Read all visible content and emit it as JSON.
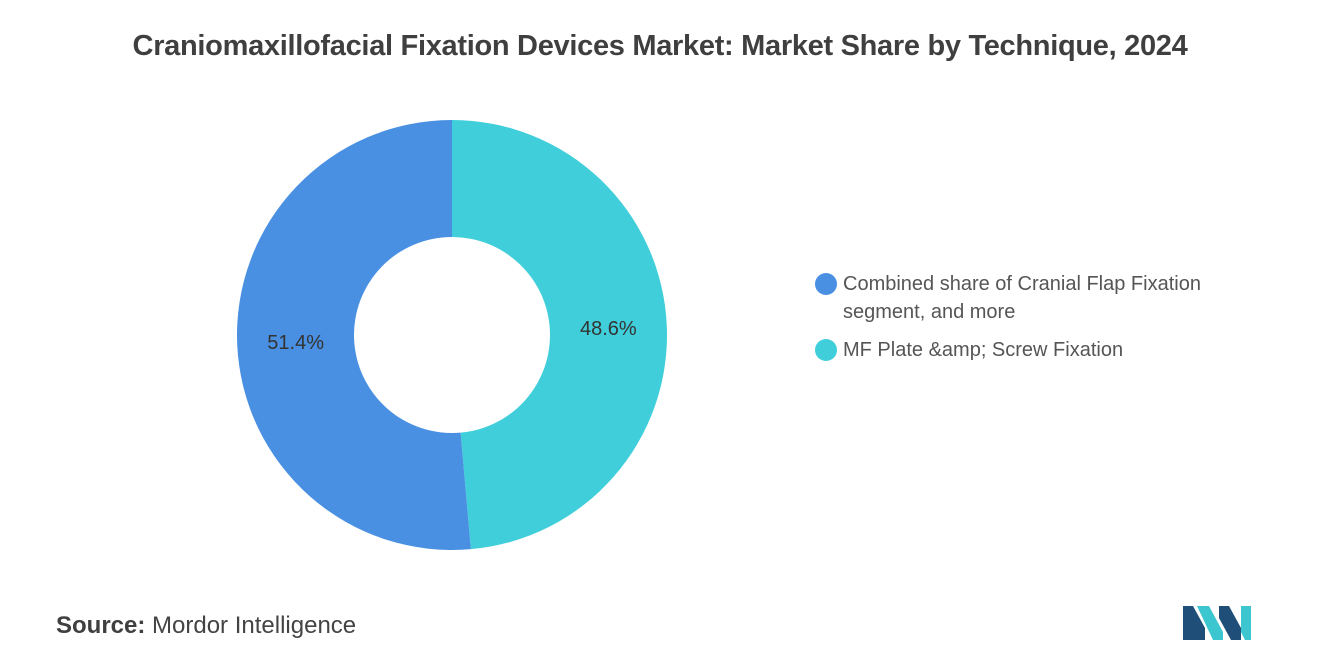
{
  "chart_data": {
    "type": "pie",
    "title": "Craniomaxillofacial Fixation Devices Market: Market Share by Technique, 2024",
    "donut": true,
    "slices": [
      {
        "label": "MF Plate &amp; Screw Fixation",
        "value": 48.6,
        "display": "48.6%",
        "color": "#40CFDA"
      },
      {
        "label": "Combined share of Cranial Flap Fixation segment, and more",
        "value": 51.4,
        "display": "51.4%",
        "color": "#4A90E2"
      }
    ],
    "legend": {
      "placement": "right",
      "entries": [
        {
          "label": "Combined share of Cranial Flap Fixation segment, and more",
          "color": "#4A90E2"
        },
        {
          "label": "MF Plate &amp; Screw Fixation",
          "color": "#40CFDA"
        }
      ]
    }
  },
  "source": {
    "key": "Source:",
    "value": "Mordor Intelligence"
  },
  "logo": {
    "icon": "mordor-intelligence-logo",
    "colors": [
      "#1F4E79",
      "#3CC6D0"
    ]
  }
}
